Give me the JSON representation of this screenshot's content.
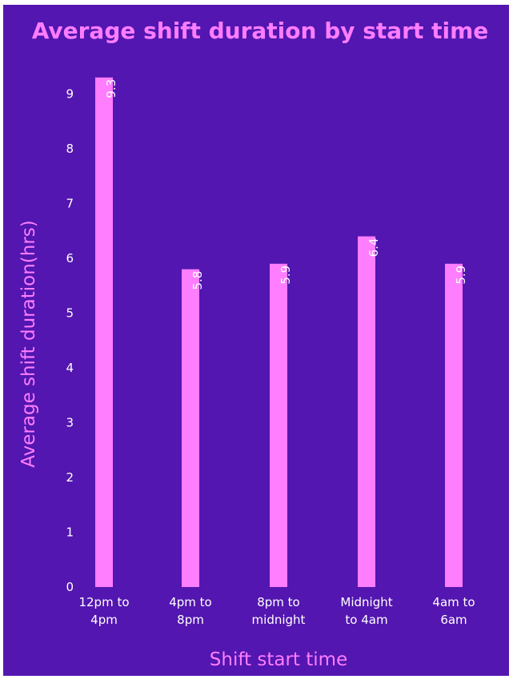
{
  "chart_data": {
    "type": "bar",
    "title": "Average shift duration by start time",
    "xlabel": "Shift start time",
    "ylabel": "Average shift duration(hrs)",
    "categories": [
      [
        "12pm to",
        "4pm"
      ],
      [
        "4pm to",
        "8pm"
      ],
      [
        "8pm to",
        "midnight"
      ],
      [
        "Midnight",
        "to 4am"
      ],
      [
        "4am to",
        "6am"
      ]
    ],
    "values": [
      9.3,
      5.8,
      5.9,
      6.4,
      5.9
    ],
    "data_labels": [
      "9.3",
      "5.8",
      "5.9",
      "6.4",
      "5.9"
    ],
    "ylim": [
      0,
      9.4
    ],
    "yticks": [
      0,
      1,
      2,
      3,
      4,
      5,
      6,
      7,
      8,
      9
    ],
    "grid": false,
    "colors": {
      "background": "#5316b0",
      "bar": "#ff7dff",
      "title": "#ff7dff",
      "axis_title": "#ff7dff",
      "tick_text": "#ffffff"
    }
  }
}
